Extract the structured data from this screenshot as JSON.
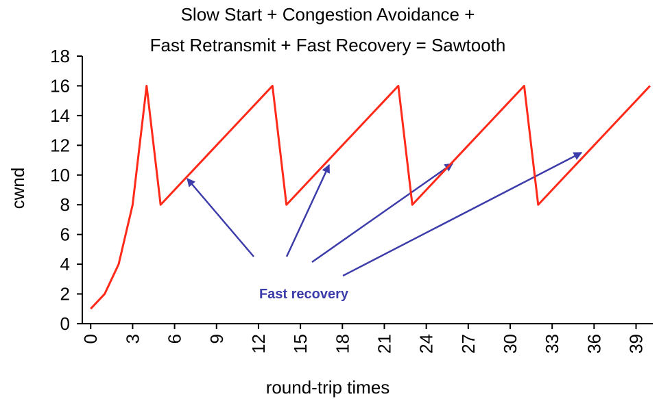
{
  "chart_data": {
    "type": "line",
    "title": [
      "Slow Start + Congestion Avoidance +",
      "Fast Retransmit + Fast Recovery = Sawtooth"
    ],
    "xlabel": "round-trip times",
    "ylabel": "cwnd",
    "annotation": "Fast recovery",
    "x": [
      0,
      1,
      2,
      3,
      4,
      5,
      6,
      7,
      8,
      9,
      10,
      11,
      12,
      13,
      14,
      15,
      16,
      17,
      18,
      19,
      20,
      21,
      22,
      23,
      24,
      25,
      26,
      27,
      28,
      29,
      30,
      31,
      32,
      33,
      34,
      35,
      36,
      37,
      38,
      39,
      40
    ],
    "series": [
      {
        "color": "#ff2a1a",
        "values": [
          1,
          2,
          4,
          8,
          16,
          8,
          9,
          10,
          11,
          12,
          13,
          14,
          15,
          16,
          8,
          9,
          10,
          11,
          12,
          13,
          14,
          15,
          16,
          8,
          9,
          10,
          11,
          12,
          13,
          14,
          15,
          16,
          8,
          9,
          10,
          11,
          12,
          13,
          14,
          15,
          16
        ]
      }
    ],
    "xlim": [
      -0.6,
      40.2
    ],
    "ylim": [
      0,
      18
    ],
    "xticks": [
      0,
      3,
      6,
      9,
      12,
      15,
      18,
      21,
      24,
      27,
      30,
      33,
      36,
      39
    ],
    "yticks": [
      0,
      2,
      4,
      6,
      8,
      10,
      12,
      14,
      16,
      18
    ]
  }
}
